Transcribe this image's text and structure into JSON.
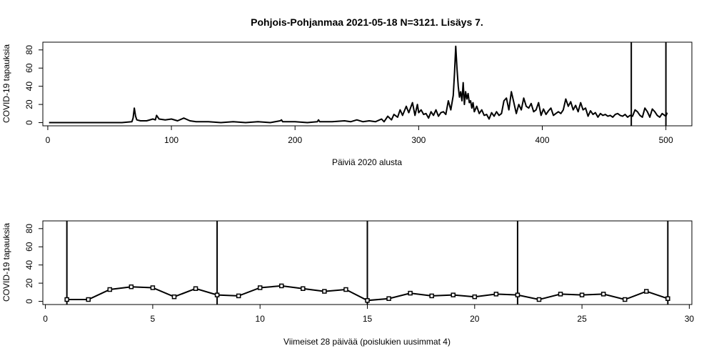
{
  "title": "Pohjois-Pohjanmaa 2021-05-18 N=3121. Lisäys 7.",
  "colors": {
    "line": "#000000",
    "background": "#ffffff"
  },
  "chart_data": [
    {
      "type": "line",
      "xlabel": "Päiviä 2020 alusta",
      "ylabel": "COVID-19 tapauksia",
      "xlim": [
        -4,
        521
      ],
      "ylim": [
        -3.5,
        88.5
      ],
      "xticks": [
        0,
        100,
        200,
        300,
        400,
        500
      ],
      "yticks": [
        0,
        20,
        40,
        60,
        80
      ],
      "vlines": [
        472,
        500
      ],
      "series": [
        {
          "x": [
            1,
            60,
            68,
            69,
            70,
            71,
            72,
            75,
            80,
            85,
            87,
            88,
            90,
            95,
            100,
            105,
            110,
            115,
            120,
            130,
            140,
            150,
            160,
            170,
            180,
            188,
            189,
            190,
            200,
            210,
            218,
            219,
            220,
            230,
            240,
            245,
            250,
            255,
            260,
            265,
            270,
            272,
            275,
            278,
            280,
            283,
            285,
            287,
            290,
            292,
            295,
            297,
            299,
            300,
            302,
            304,
            306,
            308,
            310,
            312,
            314,
            316,
            318,
            320,
            322,
            324,
            326,
            328,
            329,
            330,
            331,
            332,
            333,
            334,
            335,
            336,
            337,
            338,
            339,
            340,
            341,
            342,
            343,
            344,
            345,
            347,
            349,
            351,
            353,
            355,
            357,
            359,
            361,
            363,
            365,
            367,
            369,
            371,
            373,
            375,
            377,
            379,
            381,
            383,
            385,
            387,
            389,
            391,
            393,
            395,
            397,
            399,
            401,
            403,
            405,
            407,
            409,
            411,
            413,
            415,
            417,
            419,
            421,
            423,
            425,
            427,
            429,
            431,
            433,
            435,
            437,
            439,
            441,
            443,
            445,
            447,
            449,
            451,
            453,
            455,
            457,
            459,
            461,
            463,
            465,
            467,
            469,
            471,
            473,
            475,
            477,
            479,
            481,
            483,
            485,
            487,
            489,
            491,
            493,
            495,
            497,
            499,
            500,
            501
          ],
          "y": [
            0,
            0,
            1,
            5,
            16,
            7,
            3,
            2,
            2,
            4,
            3,
            8,
            4,
            3,
            4,
            2,
            5,
            2,
            1,
            1,
            0,
            1,
            0,
            1,
            0,
            2,
            3,
            1,
            1,
            0,
            1,
            3,
            1,
            1,
            2,
            1,
            3,
            1,
            2,
            1,
            4,
            1,
            7,
            3,
            9,
            6,
            14,
            8,
            18,
            11,
            22,
            8,
            20,
            11,
            14,
            9,
            10,
            5,
            12,
            8,
            14,
            7,
            11,
            12,
            9,
            24,
            14,
            30,
            55,
            84,
            60,
            40,
            28,
            34,
            24,
            44,
            20,
            34,
            26,
            32,
            22,
            24,
            16,
            22,
            12,
            18,
            10,
            14,
            8,
            9,
            4,
            11,
            7,
            12,
            8,
            10,
            24,
            27,
            14,
            34,
            22,
            10,
            20,
            14,
            27,
            18,
            16,
            21,
            12,
            14,
            22,
            8,
            15,
            9,
            13,
            16,
            8,
            10,
            12,
            10,
            14,
            26,
            18,
            23,
            14,
            19,
            12,
            22,
            14,
            16,
            7,
            13,
            9,
            11,
            6,
            10,
            8,
            9,
            7,
            8,
            6,
            9,
            10,
            8,
            7,
            9,
            6,
            8,
            7,
            14,
            12,
            8,
            6,
            16,
            12,
            6,
            15,
            12,
            8,
            6,
            10,
            8,
            7,
            11
          ]
        }
      ]
    },
    {
      "type": "line",
      "xlabel": "Viimeiset 28 päivää (poislukien uusimmat 4)",
      "ylabel": "COVID-19 tapauksia",
      "xlim": [
        -0.12,
        30.12
      ],
      "ylim": [
        -3.5,
        88.5
      ],
      "xticks": [
        0,
        5,
        10,
        15,
        20,
        25,
        30
      ],
      "yticks": [
        0,
        20,
        40,
        60,
        80
      ],
      "vlines": [
        1,
        8,
        15,
        22,
        29
      ],
      "series": [
        {
          "x": [
            1,
            2,
            3,
            4,
            5,
            6,
            7,
            8,
            9,
            10,
            11,
            12,
            13,
            14,
            15,
            16,
            17,
            18,
            19,
            20,
            21,
            22,
            23,
            24,
            25,
            26,
            27,
            28,
            29
          ],
          "y": [
            2,
            2,
            13,
            16,
            15,
            5,
            14,
            7,
            6,
            15,
            17,
            14,
            11,
            13,
            1,
            3,
            9,
            6,
            7,
            5,
            8,
            7,
            2,
            8,
            7,
            8,
            2,
            11,
            3
          ]
        }
      ]
    }
  ]
}
